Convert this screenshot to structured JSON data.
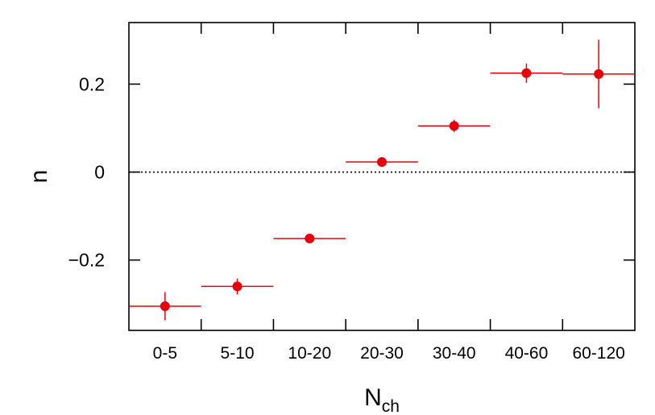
{
  "chart_data": {
    "type": "scatter",
    "categories": [
      "0-5",
      "5-10",
      "10-20",
      "20-30",
      "30-40",
      "40-60",
      "60-120"
    ],
    "values": [
      -0.305,
      -0.26,
      -0.151,
      0.023,
      0.105,
      0.225,
      0.223
    ],
    "errors": [
      0.032,
      0.018,
      0.008,
      0.008,
      0.014,
      0.022,
      0.078
    ],
    "xlabel": {
      "main": "N",
      "sub": "ch"
    },
    "ylabel": "n",
    "ylim": [
      -0.36,
      0.34
    ],
    "yticks": [
      -0.2,
      0,
      0.2
    ],
    "ytick_labels": [
      "−0.2",
      "0",
      "0.2"
    ],
    "reference_line": 0,
    "marker_color": "#e8000b",
    "grid": false
  }
}
